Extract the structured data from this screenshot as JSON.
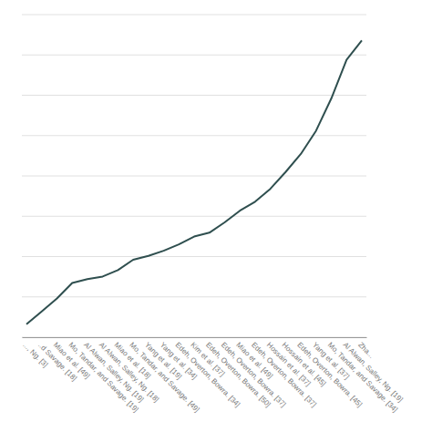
{
  "chart_data": {
    "type": "line",
    "categories": [
      "..., Ng. [3]",
      "..d Savage. [18]",
      "Miao et al. [49]",
      "Mo, Tandar, and Savage. [19]",
      "Al Alwan, Salley, Ng. [19]",
      "Al Alwan, Salley, Ng. [18]",
      "Miao et al. [18]",
      "Mo, Tandar, and Savage. [49]",
      "Yang et al. [19]",
      "Yang et al. [34]",
      "Edeh, Overton, Bowra. [34]",
      "Kim et al. [37]",
      "Edeh, Overton, Bowra. [50]",
      "Edeh, Overton, Bowra. [37]",
      "Miao et al. [49]",
      "Edeh, Overton, Bowra. [37]",
      "Hossain et al. [37]",
      "Hossain et al. [45]",
      "Edeh, Overton, Bowra. [45]",
      "Yang et al. [37]",
      "Mo, Tandar, and Savage. [34]",
      "Al Alwan, Salley, Ng. [19]",
      "Zha..."
    ],
    "values": [
      1,
      2,
      3,
      4.2,
      4.5,
      4.7,
      5.2,
      6.0,
      6.3,
      6.7,
      7.2,
      7.8,
      8.1,
      8.9,
      9.8,
      10.5,
      11.5,
      12.8,
      14.2,
      16.0,
      18.5,
      21.5,
      23.0
    ],
    "color": "#2f4f4f",
    "ylim": [
      0,
      25
    ],
    "yticks": [
      0,
      3.125,
      6.25,
      9.375,
      12.5,
      15.625,
      18.75,
      21.875,
      25
    ],
    "grid": true,
    "tick_labels": "x"
  }
}
